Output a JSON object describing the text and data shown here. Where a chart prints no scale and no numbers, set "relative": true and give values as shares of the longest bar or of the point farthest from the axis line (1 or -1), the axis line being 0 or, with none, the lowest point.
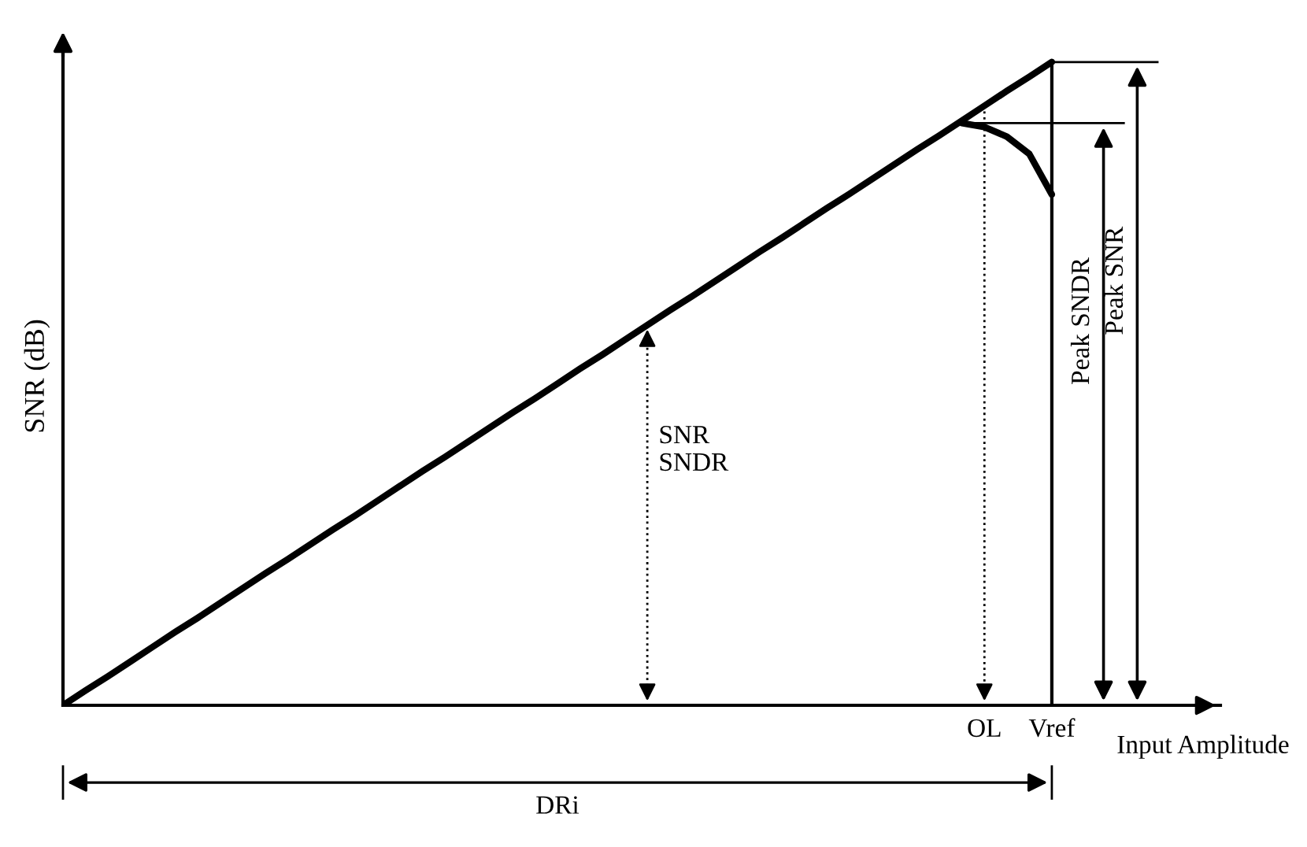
{
  "chart_data": {
    "type": "line",
    "relative": true,
    "xlabel": "Input Amplitude",
    "ylabel": "SNR (dB)",
    "categories": [
      null,
      null,
      null,
      null,
      null,
      null,
      null,
      null,
      null,
      null,
      null,
      null,
      null,
      null,
      null,
      null,
      null,
      null,
      null,
      null,
      null,
      null,
      null,
      null,
      null,
      null,
      null,
      null,
      null,
      null,
      null,
      null,
      null,
      null,
      null,
      null,
      null,
      null,
      null,
      null,
      null,
      "OL",
      null,
      null,
      "Vref",
      null,
      null,
      null,
      null,
      null,
      null,
      null
    ],
    "series": [
      {
        "color": "#000000",
        "values": [
          0,
          0.023,
          0.045,
          0.068,
          0.091,
          0.114,
          0.136,
          0.159,
          0.182,
          0.205,
          0.227,
          0.25,
          0.273,
          0.295,
          0.318,
          0.341,
          0.364,
          0.386,
          0.409,
          0.432,
          0.455,
          0.477,
          0.5,
          0.523,
          0.545,
          0.568,
          0.591,
          0.614,
          0.636,
          0.659,
          0.682,
          0.705,
          0.727,
          0.75,
          0.773,
          0.795,
          0.818,
          0.841,
          0.864,
          0.886,
          0.909,
          0.932,
          0.955,
          0.977,
          1.0,
          null,
          null,
          null,
          null,
          null,
          null,
          null
        ]
      },
      {
        "color": "#000000",
        "values": [
          null,
          null,
          null,
          null,
          null,
          null,
          null,
          null,
          null,
          null,
          null,
          null,
          null,
          null,
          null,
          null,
          null,
          null,
          null,
          null,
          null,
          null,
          null,
          null,
          null,
          null,
          null,
          null,
          null,
          null,
          null,
          null,
          null,
          null,
          null,
          null,
          null,
          null,
          null,
          null,
          0.905,
          0.899,
          0.884,
          0.857,
          0.794,
          null,
          null,
          null,
          null,
          null,
          null,
          null
        ]
      }
    ],
    "ref_lines": [
      {
        "axis": "x",
        "value": "OL",
        "line_style": "dotted"
      },
      {
        "axis": "x",
        "value": "Vref",
        "line_style": "solid"
      },
      {
        "axis": "y",
        "value": 0.905,
        "line_style": "solid"
      },
      {
        "axis": "y",
        "value": 1.0,
        "line_style": "solid"
      }
    ],
    "annotations": [
      "SNR\nSNDR",
      "Peak SNDR",
      "Peak SNR",
      "DRi"
    ],
    "marker": "none",
    "line_style": "solid",
    "legend": false
  }
}
